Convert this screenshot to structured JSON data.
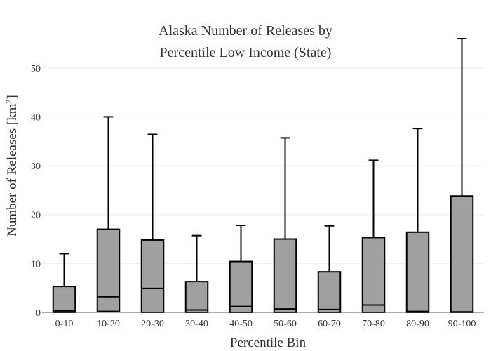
{
  "chart_data": {
    "type": "box",
    "title_lines": [
      "Alaska Number of Releases by",
      "Percentile Low Income (State)"
    ],
    "xlabel": "Percentile Bin",
    "ylabel": "Number of Releases  [km",
    "ylabel_sup": "2",
    "ylabel_close": "]",
    "ylim": [
      0,
      56
    ],
    "yticks": [
      0,
      10,
      20,
      30,
      40,
      50
    ],
    "grid": true,
    "categories": [
      "0-10",
      "10-20",
      "20-30",
      "30-40",
      "40-50",
      "50-60",
      "60-70",
      "70-80",
      "80-90",
      "90-100"
    ],
    "boxes": [
      {
        "min": 0,
        "q1": 0,
        "median": 0.3,
        "q3": 5.3,
        "max": 12.0
      },
      {
        "min": 0,
        "q1": 0.2,
        "median": 3.2,
        "q3": 17.0,
        "max": 40.0
      },
      {
        "min": 0,
        "q1": 0,
        "median": 4.9,
        "q3": 14.8,
        "max": 36.4
      },
      {
        "min": 0,
        "q1": 0,
        "median": 0.5,
        "q3": 6.3,
        "max": 15.7
      },
      {
        "min": 0,
        "q1": 0,
        "median": 1.2,
        "q3": 10.4,
        "max": 17.8
      },
      {
        "min": 0,
        "q1": 0,
        "median": 0.7,
        "q3": 15.0,
        "max": 35.7
      },
      {
        "min": 0,
        "q1": 0,
        "median": 0.6,
        "q3": 8.3,
        "max": 17.7
      },
      {
        "min": 0,
        "q1": 0,
        "median": 1.5,
        "q3": 15.3,
        "max": 31.1
      },
      {
        "min": 0,
        "q1": 0,
        "median": 0.2,
        "q3": 16.4,
        "max": 37.6
      },
      {
        "min": 0,
        "q1": 0,
        "median": 0.1,
        "q3": 23.8,
        "max": 56.0
      }
    ],
    "box_color": "#a0a0a0",
    "line_color": "#000000"
  }
}
